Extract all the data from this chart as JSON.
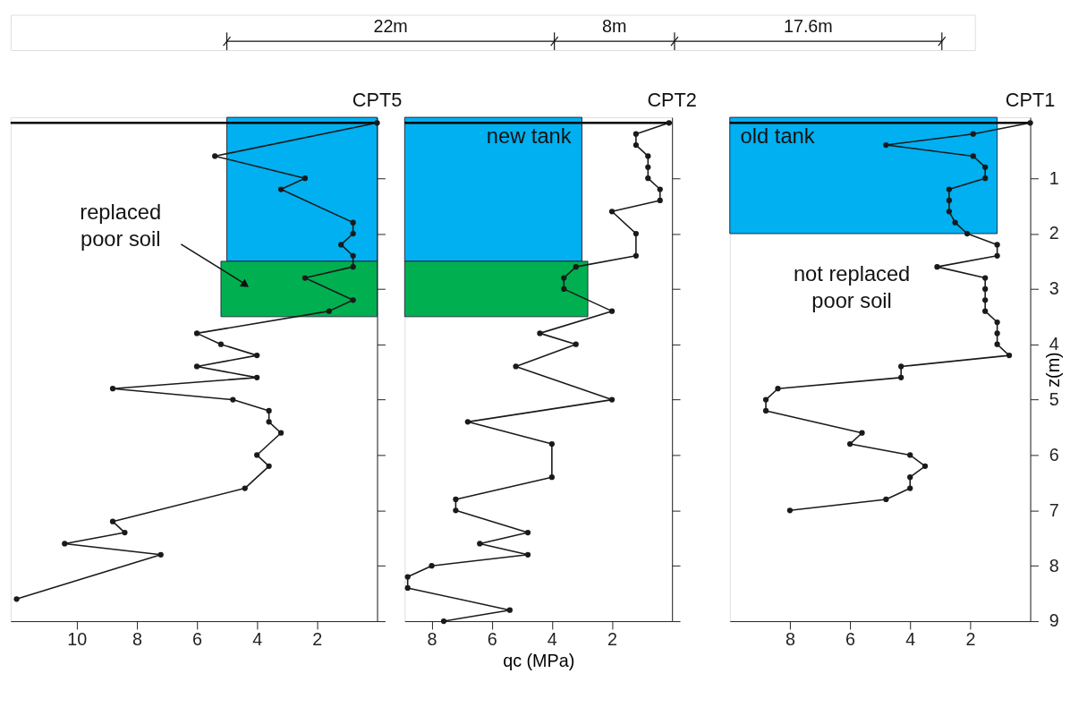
{
  "chart_data": [
    {
      "type": "line",
      "orientation": "horizontal",
      "xlim": [
        12.2,
        0
      ],
      "xticks": [
        10,
        8,
        6,
        4,
        2
      ],
      "ylim": [
        9,
        -0.1
      ],
      "yticks": [
        1,
        2,
        3,
        4,
        5,
        6,
        7,
        8,
        9
      ],
      "tick_labels": "x",
      "marker": "circle",
      "series": [
        {
          "name": "CPT5",
          "color": "#1a1a1a",
          "x": [
            0,
            0.6,
            1.0,
            1.2,
            1.8,
            2.0,
            2.2,
            2.4,
            2.6,
            2.8,
            3.2,
            3.4,
            3.8,
            4.0,
            4.2,
            4.4,
            4.6,
            4.8,
            5.0,
            5.2,
            5.4,
            5.6,
            6.0,
            6.2,
            6.6,
            7.2,
            7.4,
            7.6,
            7.8,
            8.6
          ],
          "values": [
            0,
            5.4,
            2.4,
            3.2,
            0.8,
            0.8,
            1.2,
            0.8,
            0.8,
            2.4,
            0.8,
            1.6,
            6.0,
            5.2,
            4.0,
            6.0,
            4.0,
            8.8,
            4.8,
            3.6,
            3.6,
            3.2,
            4.0,
            3.6,
            4.4,
            8.8,
            8.4,
            10.4,
            7.2,
            12.0
          ]
        }
      ],
      "ref_lines": [
        {
          "axis": "y",
          "value": 0,
          "color": "#000000"
        }
      ],
      "bands": [
        {
          "axis": "y",
          "from": -0.1,
          "to": 2.5,
          "color": "#00b0f0"
        },
        {
          "axis": "y",
          "from": 2.5,
          "to": 3.5,
          "color": "#00b050"
        }
      ],
      "annotations": [
        "22m",
        "8m",
        "17.6m",
        "replaced\npoor soil"
      ]
    },
    {
      "type": "line",
      "orientation": "horizontal",
      "xlim": [
        8.9,
        0
      ],
      "xticks": [
        8,
        6,
        4,
        2
      ],
      "ylim": [
        9,
        -0.1
      ],
      "yticks": [
        1,
        2,
        3,
        4,
        5,
        6,
        7,
        8,
        9
      ],
      "tick_labels": "x",
      "marker": "circle",
      "xlabel": "qc (MPa)",
      "series": [
        {
          "name": "CPT2",
          "color": "#1a1a1a",
          "x": [
            0,
            0.2,
            0.4,
            0.6,
            0.8,
            1.0,
            1.2,
            1.4,
            1.6,
            2.0,
            2.4,
            2.6,
            2.8,
            3.0,
            3.4,
            3.8,
            4.0,
            4.4,
            5.0,
            5.4,
            5.8,
            6.4,
            6.8,
            7.0,
            7.4,
            7.6,
            7.8,
            8.0,
            8.2,
            8.4,
            8.8,
            9.0
          ],
          "values": [
            0.1,
            1.2,
            1.2,
            0.8,
            0.8,
            0.8,
            0.4,
            0.4,
            2.0,
            1.2,
            1.2,
            3.2,
            3.6,
            3.6,
            2.0,
            4.4,
            3.2,
            5.2,
            2.0,
            6.8,
            4.0,
            4.0,
            7.2,
            7.2,
            4.8,
            6.4,
            4.8,
            8.0,
            8.8,
            8.8,
            5.4,
            7.6
          ]
        }
      ],
      "ref_lines": [
        {
          "axis": "y",
          "value": 0,
          "color": "#000000"
        }
      ],
      "bands": [
        {
          "axis": "y",
          "from": -0.1,
          "to": 2.5,
          "label": "new tank",
          "color": "#00b0f0"
        },
        {
          "axis": "y",
          "from": 2.5,
          "to": 3.5,
          "color": "#00b050"
        }
      ]
    },
    {
      "type": "line",
      "orientation": "horizontal",
      "xlim": [
        10,
        0
      ],
      "xticks": [
        8,
        6,
        4,
        2
      ],
      "ylim": [
        9,
        -0.1
      ],
      "yticks": [
        1,
        2,
        3,
        4,
        5,
        6,
        7,
        8,
        9
      ],
      "marker": "circle",
      "ylabel": "z(m)",
      "series": [
        {
          "name": "CPT1",
          "color": "#1a1a1a",
          "x": [
            0,
            0.2,
            0.4,
            0.6,
            0.8,
            1.0,
            1.2,
            1.4,
            1.6,
            1.8,
            2.0,
            2.2,
            2.4,
            2.6,
            2.8,
            3.0,
            3.2,
            3.4,
            3.6,
            3.8,
            4.0,
            4.2,
            4.4,
            4.6,
            4.8,
            5.0,
            5.2,
            5.6,
            5.8,
            6.0,
            6.2,
            6.4,
            6.6,
            6.8,
            7.0
          ],
          "values": [
            0,
            1.9,
            4.8,
            1.9,
            1.5,
            1.5,
            2.7,
            2.7,
            2.7,
            2.5,
            2.1,
            1.1,
            1.1,
            3.1,
            1.5,
            1.5,
            1.5,
            1.5,
            1.1,
            1.1,
            1.1,
            0.7,
            4.3,
            4.3,
            8.4,
            8.8,
            8.8,
            5.6,
            6.0,
            4.0,
            3.5,
            4.0,
            4.0,
            4.8,
            8.0
          ]
        }
      ],
      "ref_lines": [
        {
          "axis": "y",
          "value": 0,
          "color": "#000000"
        }
      ],
      "bands": [
        {
          "axis": "y",
          "from": -0.1,
          "to": 2.0,
          "label": "old tank",
          "color": "#00b0f0"
        }
      ],
      "annotations": [
        "not replaced\npoor soil"
      ]
    }
  ]
}
